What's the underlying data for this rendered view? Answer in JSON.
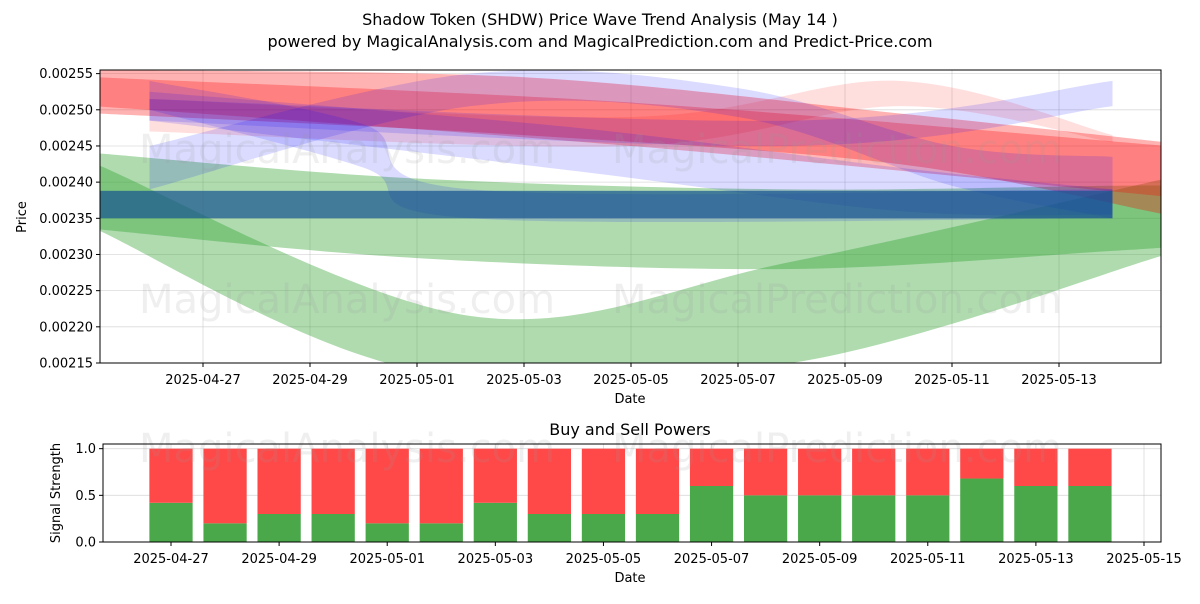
{
  "header": {
    "title": "Shadow Token (SHDW) Price Wave Trend Analysis (May 14 )",
    "subtitle": "powered by MagicalAnalysis.com and MagicalPrediction.com and Predict-Price.com"
  },
  "watermarks": [
    "MagicalAnalysis.com",
    "MagicalPrediction.com"
  ],
  "colors": {
    "green": "#2ca02c",
    "red": "#ff0000",
    "blue": "#0000ff",
    "buy": "#4aa84a",
    "sell": "#ff4848"
  },
  "chart_data": [
    {
      "type": "area",
      "xlabel": "Date",
      "ylabel": "Price",
      "ylim": [
        0.00215,
        0.002555
      ],
      "xlim": [
        "2025-04-24",
        "2025-05-15"
      ],
      "y_ticks": [
        "0.00215",
        "0.00220",
        "0.00225",
        "0.00230",
        "0.00235",
        "0.00240",
        "0.00245",
        "0.00250",
        "0.00255"
      ],
      "x_ticks": [
        "2025-04-27",
        "2025-04-29",
        "2025-05-01",
        "2025-05-03",
        "2025-05-05",
        "2025-05-07",
        "2025-05-09",
        "2025-05-11",
        "2025-05-13"
      ],
      "grid": true,
      "bands": [
        {
          "color": "green",
          "opacity": 0.38,
          "upper": [
            [
              "2025-04-25",
              0.00244
            ],
            [
              "2025-05-01",
              0.002405
            ],
            [
              "2025-05-08",
              0.00239
            ],
            [
              "2025-05-14",
              0.002395
            ],
            [
              "2025-05-15",
              0.002395
            ]
          ],
          "lower": [
            [
              "2025-04-25",
              0.002335
            ],
            [
              "2025-05-01",
              0.002295
            ],
            [
              "2025-05-08",
              0.00228
            ],
            [
              "2025-05-14",
              0.002305
            ],
            [
              "2025-05-15",
              0.00231
            ]
          ]
        },
        {
          "color": "green",
          "opacity": 0.38,
          "upper": [
            [
              "2025-04-25",
              0.002425
            ],
            [
              "2025-05-02",
              0.002215
            ],
            [
              "2025-05-08",
              0.00229
            ],
            [
              "2025-05-15",
              0.002405
            ]
          ],
          "lower": [
            [
              "2025-04-25",
              0.002335
            ],
            [
              "2025-05-01",
              0.00214
            ],
            [
              "2025-05-08",
              0.00215
            ],
            [
              "2025-05-15",
              0.0023
            ]
          ]
        },
        {
          "color": "red",
          "opacity": 0.3,
          "upper": [
            [
              "2025-04-25",
              0.002555
            ],
            [
              "2025-05-03",
              0.002545
            ],
            [
              "2025-05-10",
              0.002495
            ],
            [
              "2025-05-15",
              0.002455
            ]
          ],
          "lower": [
            [
              "2025-04-25",
              0.002495
            ],
            [
              "2025-05-03",
              0.002465
            ],
            [
              "2025-05-10",
              0.002425
            ],
            [
              "2025-05-15",
              0.002355
            ]
          ]
        },
        {
          "color": "red",
          "opacity": 0.28,
          "upper": [
            [
              "2025-04-25",
              0.002545
            ],
            [
              "2025-05-05",
              0.00251
            ],
            [
              "2025-05-15",
              0.00245
            ]
          ],
          "lower": [
            [
              "2025-04-25",
              0.002505
            ],
            [
              "2025-05-05",
              0.00245
            ],
            [
              "2025-05-15",
              0.00238
            ]
          ]
        },
        {
          "color": "red",
          "opacity": 0.13,
          "upper": [
            [
              "2025-04-26",
              0.002515
            ],
            [
              "2025-05-05",
              0.00249
            ],
            [
              "2025-05-10",
              0.00254
            ],
            [
              "2025-05-14",
              0.002465
            ]
          ],
          "lower": [
            [
              "2025-04-26",
              0.00247
            ],
            [
              "2025-05-05",
              0.00245
            ],
            [
              "2025-05-10",
              0.002505
            ],
            [
              "2025-05-14",
              0.002455
            ]
          ]
        },
        {
          "color": "blue",
          "opacity": 0.14,
          "upper": [
            [
              "2025-04-26",
              0.00245
            ],
            [
              "2025-05-02",
              0.00255
            ],
            [
              "2025-05-07",
              0.00253
            ],
            [
              "2025-05-11",
              0.00245
            ],
            [
              "2025-05-14",
              0.002435
            ]
          ],
          "lower": [
            [
              "2025-04-26",
              0.00239
            ],
            [
              "2025-05-02",
              0.002505
            ],
            [
              "2025-05-07",
              0.00249
            ],
            [
              "2025-05-11",
              0.002395
            ],
            [
              "2025-05-14",
              0.00235
            ]
          ]
        },
        {
          "color": "blue",
          "opacity": 0.14,
          "upper": [
            [
              "2025-04-26",
              0.00254
            ],
            [
              "2025-04-30",
              0.00248
            ],
            [
              "2025-05-02",
              0.00239
            ],
            [
              "2025-05-14",
              0.00239
            ]
          ],
          "lower": [
            [
              "2025-04-26",
              0.0025
            ],
            [
              "2025-04-30",
              0.00242
            ],
            [
              "2025-05-02",
              0.00235
            ],
            [
              "2025-05-14",
              0.00235
            ]
          ]
        },
        {
          "color": "blue",
          "opacity": 0.14,
          "upper": [
            [
              "2025-04-26",
              0.002515
            ],
            [
              "2025-05-08",
              0.002485
            ],
            [
              "2025-05-14",
              0.00254
            ]
          ],
          "lower": [
            [
              "2025-04-26",
              0.002485
            ],
            [
              "2025-05-08",
              0.00245
            ],
            [
              "2025-05-14",
              0.002505
            ]
          ]
        },
        {
          "color": "blue",
          "opacity": 0.14,
          "upper": [
            [
              "2025-04-26",
              0.002525
            ],
            [
              "2025-05-04",
              0.002475
            ],
            [
              "2025-05-10",
              0.00242
            ],
            [
              "2025-05-14",
              0.00239
            ]
          ],
          "lower": [
            [
              "2025-04-26",
              0.002485
            ],
            [
              "2025-05-04",
              0.002415
            ],
            [
              "2025-05-10",
              0.00236
            ],
            [
              "2025-05-14",
              0.002355
            ]
          ]
        },
        {
          "color": "blue",
          "opacity": 0.55,
          "upper": [
            [
              "2025-04-25",
              0.002388
            ],
            [
              "2025-05-14",
              0.002388
            ]
          ],
          "lower": [
            [
              "2025-04-25",
              0.00235
            ],
            [
              "2025-05-14",
              0.00235
            ]
          ]
        },
        {
          "color": "green",
          "opacity": 0.38,
          "upper": [
            [
              "2025-04-25",
              0.002388
            ],
            [
              "2025-05-14",
              0.002388
            ]
          ],
          "lower": [
            [
              "2025-04-25",
              0.00235
            ],
            [
              "2025-05-14",
              0.00235
            ]
          ]
        }
      ]
    },
    {
      "type": "bar",
      "title": "Buy and Sell Powers",
      "xlabel": "Date",
      "ylabel": "Signal Strength",
      "ylim": [
        0,
        1.05
      ],
      "y_ticks": [
        "0.0",
        "0.5",
        "1.0"
      ],
      "x_ticks": [
        "2025-04-27",
        "2025-04-29",
        "2025-05-01",
        "2025-05-03",
        "2025-05-05",
        "2025-05-07",
        "2025-05-09",
        "2025-05-11",
        "2025-05-13",
        "2025-05-15"
      ],
      "grid": true,
      "categories": [
        "2025-04-27",
        "2025-04-28",
        "2025-04-29",
        "2025-04-30",
        "2025-05-01",
        "2025-05-02",
        "2025-05-03",
        "2025-05-04",
        "2025-05-05",
        "2025-05-06",
        "2025-05-07",
        "2025-05-08",
        "2025-05-09",
        "2025-05-10",
        "2025-05-11",
        "2025-05-12",
        "2025-05-13",
        "2025-05-14"
      ],
      "series": [
        {
          "values": [
            0.42,
            0.2,
            0.3,
            0.3,
            0.2,
            0.2,
            0.42,
            0.3,
            0.3,
            0.3,
            0.6,
            0.5,
            0.5,
            0.5,
            0.5,
            0.68,
            0.6,
            0.6
          ]
        },
        {
          "values": [
            0.58,
            0.8,
            0.7,
            0.7,
            0.8,
            0.8,
            0.58,
            0.7,
            0.7,
            0.7,
            0.4,
            0.5,
            0.5,
            0.5,
            0.5,
            0.32,
            0.4,
            0.4
          ]
        }
      ]
    }
  ]
}
